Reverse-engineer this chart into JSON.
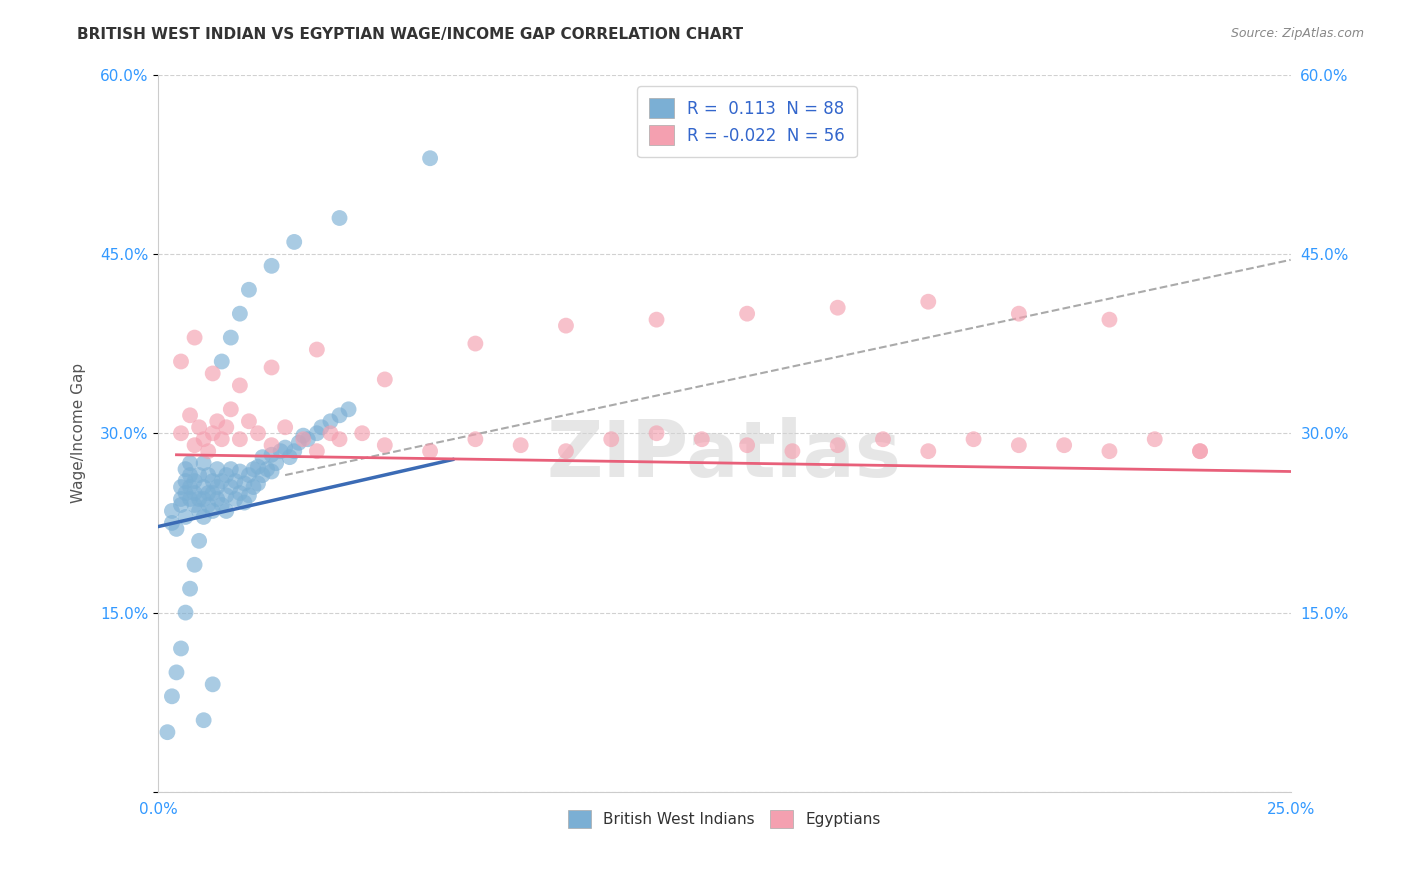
{
  "title": "BRITISH WEST INDIAN VS EGYPTIAN WAGE/INCOME GAP CORRELATION CHART",
  "source": "Source: ZipAtlas.com",
  "ylabel": "Wage/Income Gap",
  "x_min": 0.0,
  "x_max": 0.25,
  "y_min": 0.0,
  "y_max": 0.6,
  "x_ticks": [
    0.0,
    0.05,
    0.1,
    0.15,
    0.2,
    0.25
  ],
  "x_tick_labels_show": [
    "0.0%",
    "",
    "",
    "",
    "",
    "25.0%"
  ],
  "y_ticks": [
    0.0,
    0.15,
    0.3,
    0.45,
    0.6
  ],
  "y_tick_labels": [
    "",
    "15.0%",
    "30.0%",
    "45.0%",
    "60.0%"
  ],
  "legend_r_blue": " 0.113",
  "legend_n_blue": "88",
  "legend_r_pink": "-0.022",
  "legend_n_pink": "56",
  "blue_color": "#7BAFD4",
  "pink_color": "#F4A0B0",
  "blue_line_color": "#3B6BB5",
  "pink_line_color": "#E8607A",
  "dashed_line_color": "#AAAAAA",
  "watermark": "ZIPatlas",
  "blue_scatter_x": [
    0.003,
    0.003,
    0.004,
    0.005,
    0.005,
    0.005,
    0.006,
    0.006,
    0.006,
    0.006,
    0.007,
    0.007,
    0.007,
    0.007,
    0.008,
    0.008,
    0.008,
    0.009,
    0.009,
    0.009,
    0.01,
    0.01,
    0.01,
    0.01,
    0.011,
    0.011,
    0.011,
    0.012,
    0.012,
    0.012,
    0.013,
    0.013,
    0.013,
    0.014,
    0.014,
    0.015,
    0.015,
    0.015,
    0.016,
    0.016,
    0.017,
    0.017,
    0.018,
    0.018,
    0.019,
    0.019,
    0.02,
    0.02,
    0.021,
    0.021,
    0.022,
    0.022,
    0.023,
    0.023,
    0.024,
    0.025,
    0.025,
    0.026,
    0.027,
    0.028,
    0.029,
    0.03,
    0.031,
    0.032,
    0.033,
    0.035,
    0.036,
    0.038,
    0.04,
    0.042,
    0.002,
    0.003,
    0.004,
    0.005,
    0.006,
    0.007,
    0.008,
    0.009,
    0.01,
    0.012,
    0.014,
    0.016,
    0.018,
    0.02,
    0.025,
    0.03,
    0.04,
    0.06
  ],
  "blue_scatter_y": [
    0.225,
    0.235,
    0.22,
    0.24,
    0.255,
    0.245,
    0.25,
    0.26,
    0.27,
    0.23,
    0.245,
    0.255,
    0.265,
    0.275,
    0.24,
    0.25,
    0.26,
    0.235,
    0.245,
    0.265,
    0.23,
    0.245,
    0.255,
    0.275,
    0.24,
    0.25,
    0.265,
    0.235,
    0.25,
    0.26,
    0.245,
    0.255,
    0.27,
    0.24,
    0.26,
    0.235,
    0.248,
    0.265,
    0.255,
    0.27,
    0.245,
    0.26,
    0.25,
    0.268,
    0.242,
    0.258,
    0.248,
    0.265,
    0.255,
    0.27,
    0.258,
    0.272,
    0.265,
    0.28,
    0.27,
    0.268,
    0.282,
    0.275,
    0.285,
    0.288,
    0.28,
    0.285,
    0.292,
    0.298,
    0.295,
    0.3,
    0.305,
    0.31,
    0.315,
    0.32,
    0.05,
    0.08,
    0.1,
    0.12,
    0.15,
    0.17,
    0.19,
    0.21,
    0.06,
    0.09,
    0.36,
    0.38,
    0.4,
    0.42,
    0.44,
    0.46,
    0.48,
    0.53
  ],
  "pink_scatter_x": [
    0.005,
    0.007,
    0.008,
    0.009,
    0.01,
    0.011,
    0.012,
    0.013,
    0.014,
    0.015,
    0.016,
    0.018,
    0.02,
    0.022,
    0.025,
    0.028,
    0.032,
    0.035,
    0.038,
    0.04,
    0.045,
    0.05,
    0.06,
    0.07,
    0.08,
    0.09,
    0.1,
    0.11,
    0.12,
    0.13,
    0.14,
    0.15,
    0.16,
    0.17,
    0.18,
    0.19,
    0.2,
    0.21,
    0.22,
    0.23,
    0.005,
    0.008,
    0.012,
    0.018,
    0.025,
    0.035,
    0.05,
    0.07,
    0.09,
    0.11,
    0.13,
    0.15,
    0.17,
    0.19,
    0.21,
    0.23
  ],
  "pink_scatter_y": [
    0.3,
    0.315,
    0.29,
    0.305,
    0.295,
    0.285,
    0.3,
    0.31,
    0.295,
    0.305,
    0.32,
    0.295,
    0.31,
    0.3,
    0.29,
    0.305,
    0.295,
    0.285,
    0.3,
    0.295,
    0.3,
    0.29,
    0.285,
    0.295,
    0.29,
    0.285,
    0.295,
    0.3,
    0.295,
    0.29,
    0.285,
    0.29,
    0.295,
    0.285,
    0.295,
    0.29,
    0.29,
    0.285,
    0.295,
    0.285,
    0.36,
    0.38,
    0.35,
    0.34,
    0.355,
    0.37,
    0.345,
    0.375,
    0.39,
    0.395,
    0.4,
    0.405,
    0.41,
    0.4,
    0.395,
    0.285
  ],
  "blue_line_x": [
    0.0,
    0.065
  ],
  "blue_line_y": [
    0.222,
    0.278
  ],
  "pink_line_x": [
    0.004,
    0.25
  ],
  "pink_line_y": [
    0.282,
    0.268
  ],
  "dash_line_x": [
    0.028,
    0.25
  ],
  "dash_line_y": [
    0.265,
    0.445
  ]
}
